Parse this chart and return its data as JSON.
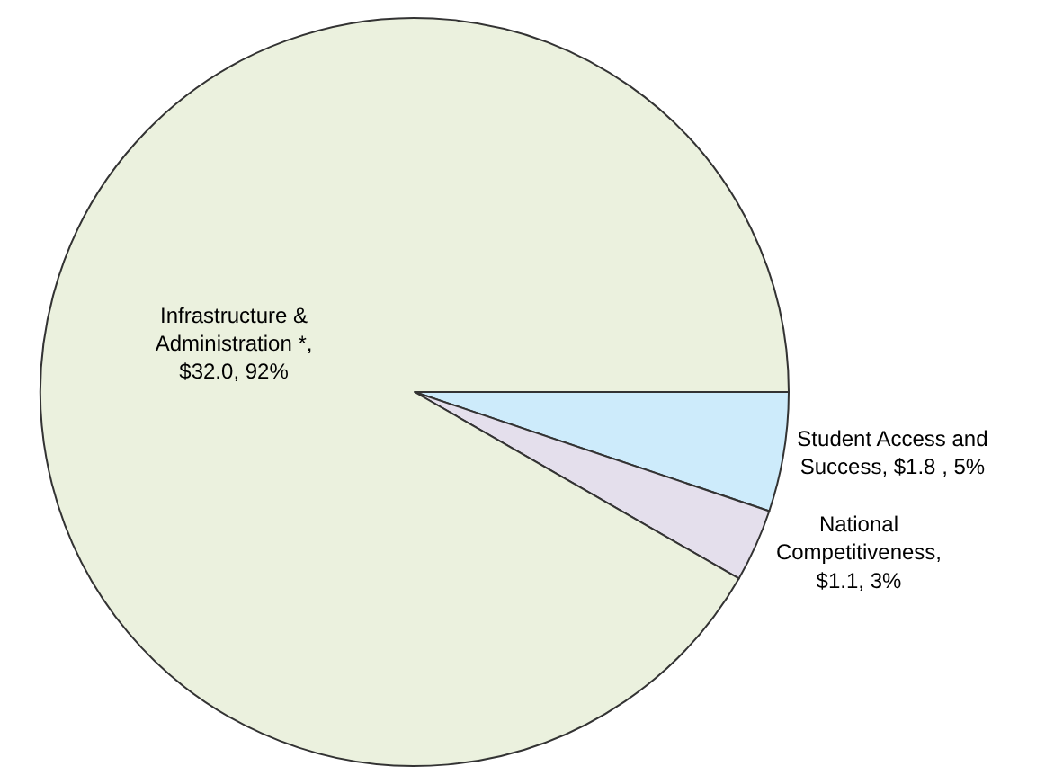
{
  "chart_data": {
    "type": "pie",
    "categories": [
      "Student Access and Success, $1.8 , 5%",
      "National Competitiveness, $1.1, 3%",
      "Infrastructure & Administration *, $32.0, 92%"
    ],
    "values": [
      1.8,
      1.1,
      32.0
    ],
    "colors": [
      "#cdebfb",
      "#e4dfec",
      "#ebf1de"
    ],
    "legend": false
  }
}
